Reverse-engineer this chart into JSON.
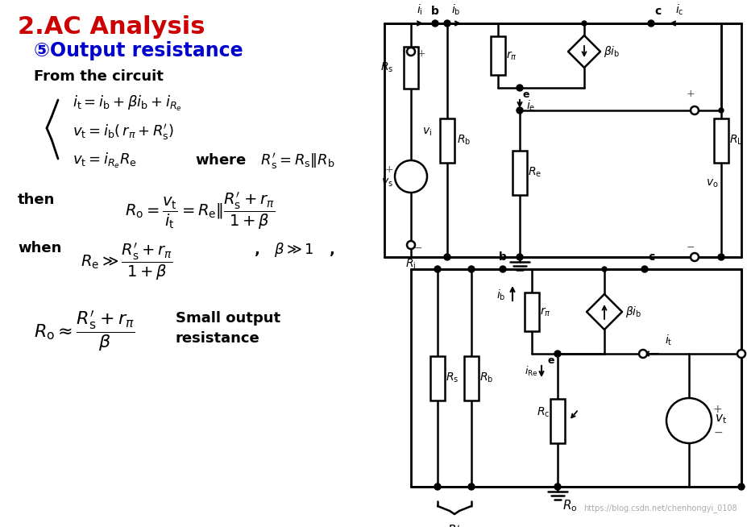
{
  "bg_color": "#ffffff",
  "text_color": "#000000",
  "red_color": "#cc0000",
  "blue_color": "#0000cc",
  "heading1": "2.AC Analysis",
  "heading2": "⑤Output resistance",
  "watermark": "https://blog.csdn.net/chenhongyi_0108"
}
